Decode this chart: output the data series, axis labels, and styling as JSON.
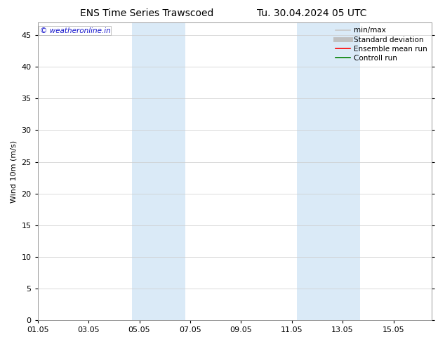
{
  "title_left": "ENS Time Series Trawscoed",
  "title_right": "Tu. 30.04.2024 05 UTC",
  "ylabel": "Wind 10m (m/s)",
  "watermark": "© weatheronline.in",
  "xtick_labels": [
    "01.05",
    "03.05",
    "05.05",
    "07.05",
    "09.05",
    "11.05",
    "13.05",
    "15.05"
  ],
  "xtick_positions": [
    0,
    2,
    4,
    6,
    8,
    10,
    12,
    14
  ],
  "xlim": [
    0,
    15.5
  ],
  "ylim": [
    0,
    47
  ],
  "yticks": [
    0,
    5,
    10,
    15,
    20,
    25,
    30,
    35,
    40,
    45
  ],
  "shaded_bands": [
    {
      "x_start": 3.7,
      "x_end": 5.8
    },
    {
      "x_start": 10.2,
      "x_end": 12.7
    }
  ],
  "band_color": "#daeaf7",
  "grid_color": "#cccccc",
  "background_color": "#ffffff",
  "legend_entries": [
    {
      "label": "min/max",
      "color": "#c8c8c8",
      "lw": 1.2
    },
    {
      "label": "Standard deviation",
      "color": "#c0c0c0",
      "lw": 5
    },
    {
      "label": "Ensemble mean run",
      "color": "#ff0000",
      "lw": 1.2
    },
    {
      "label": "Controll run",
      "color": "#008000",
      "lw": 1.2
    }
  ],
  "title_fontsize": 10,
  "axis_label_fontsize": 8,
  "tick_fontsize": 8,
  "legend_fontsize": 7.5,
  "watermark_color": "#1515cc",
  "watermark_fontsize": 7.5
}
